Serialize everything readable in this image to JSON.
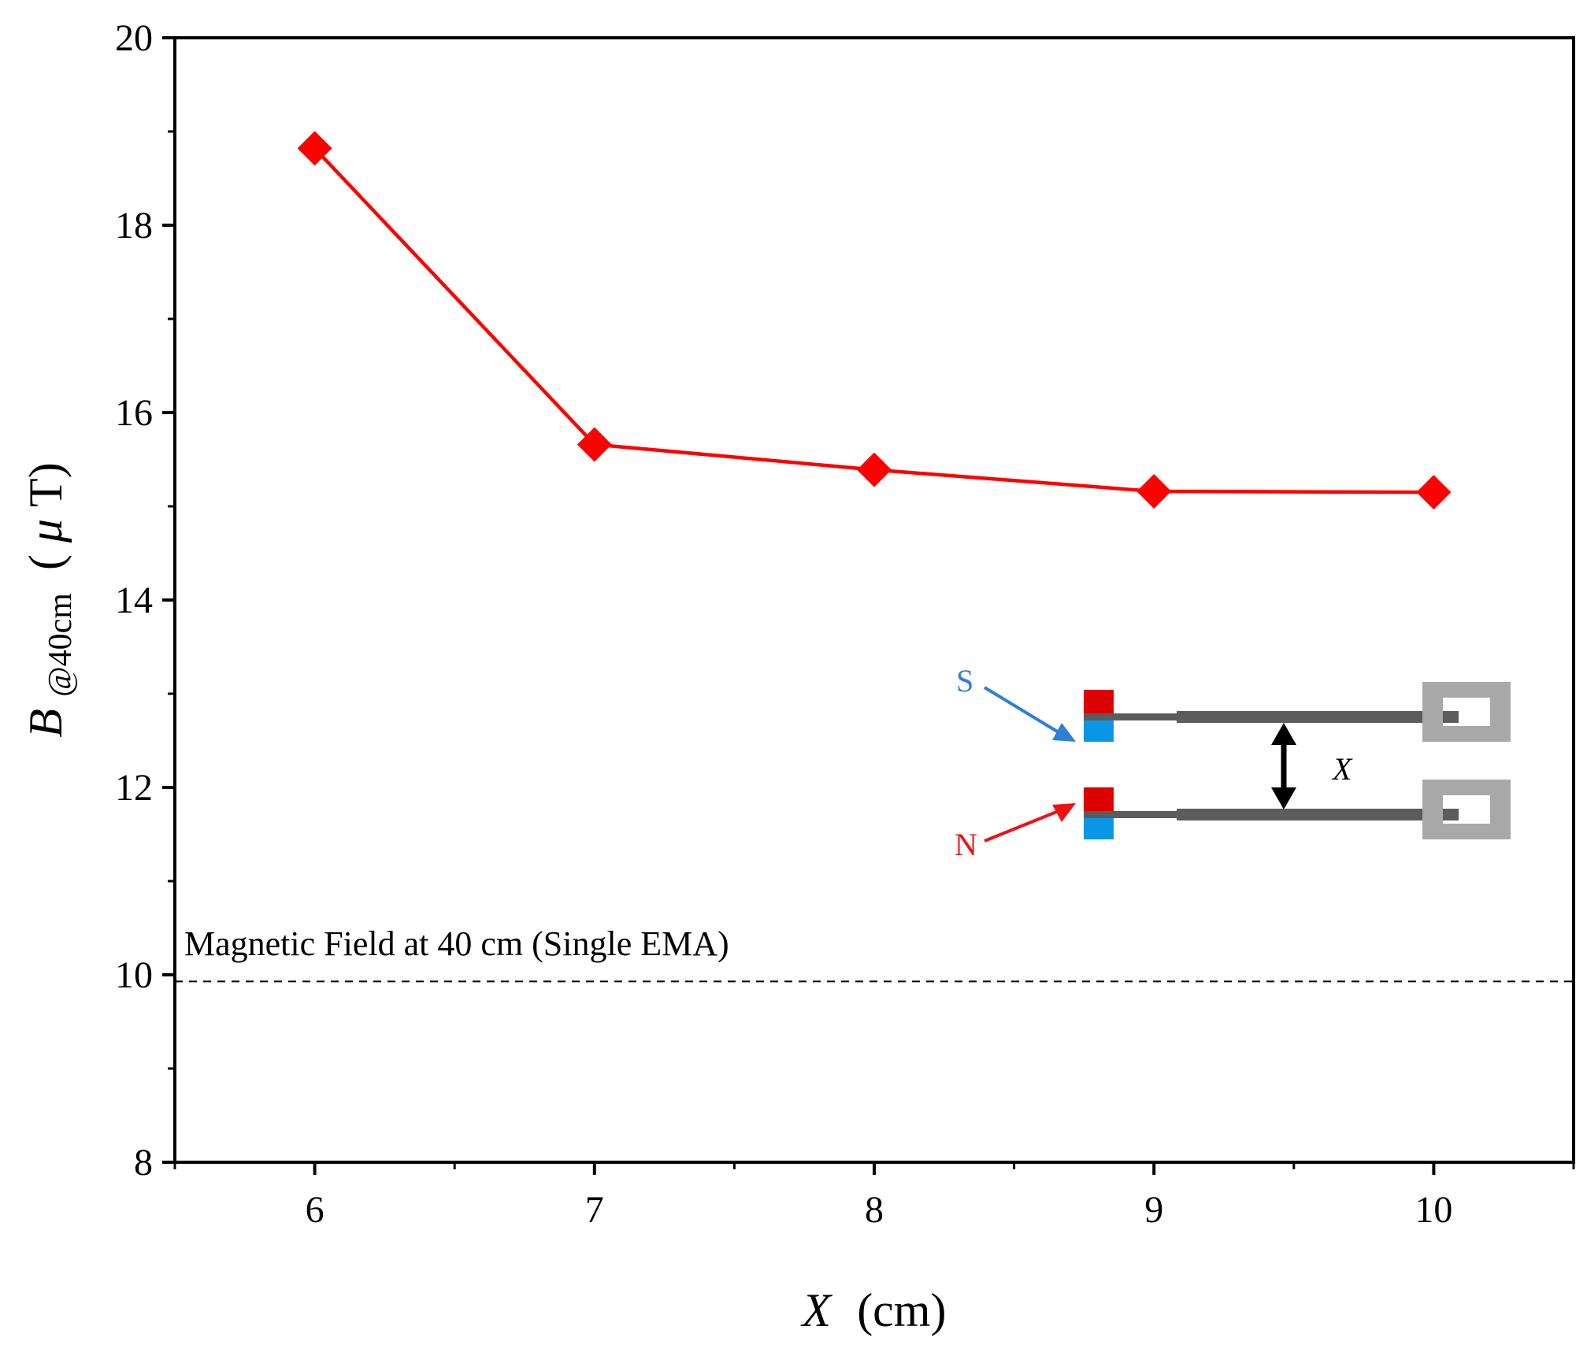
{
  "chart_data": {
    "type": "line",
    "title": "",
    "xlabel": {
      "symbol": "X",
      "unit": "(cm)"
    },
    "ylabel": {
      "symbol": "B",
      "subscript": "@40cm",
      "unit_open": "(",
      "unit_mu": "μ",
      "unit_rest": "T)"
    },
    "xlim": [
      5.5,
      10.5
    ],
    "ylim": [
      8,
      20
    ],
    "xticks": [
      6,
      7,
      8,
      9,
      10
    ],
    "yticks": [
      8,
      10,
      12,
      14,
      16,
      18,
      20
    ],
    "x_minor_ticks": [
      5.5,
      6.5,
      7.5,
      8.5,
      9.5,
      10.5
    ],
    "y_minor_ticks": [
      9,
      11,
      13,
      15,
      17,
      19
    ],
    "grid": false,
    "series": [
      {
        "name": "B@40cm",
        "color": "#ff0000",
        "marker": "diamond",
        "x": [
          6,
          7,
          8,
          9,
          10
        ],
        "y": [
          18.82,
          15.66,
          15.39,
          15.16,
          15.15
        ]
      }
    ],
    "reference_line": {
      "y": 9.93,
      "style": "dashed",
      "color": "#000000",
      "label": "Magnetic Field at 40 cm (Single EMA)"
    },
    "inset": {
      "label_s": "S",
      "label_n": "N",
      "label_x": "X",
      "color_s": "#2f7fd6",
      "color_n": "#ee1111",
      "magnet_red": "#dd0000",
      "magnet_blue": "#0a96e6",
      "rod_color": "#5c5c5c",
      "mount_color": "#a8a8a8"
    }
  }
}
